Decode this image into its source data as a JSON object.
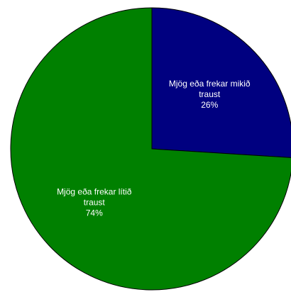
{
  "chart_data": {
    "type": "pie",
    "slices": [
      {
        "label_lines": [
          "Mjög eða frekar mikið",
          "traust"
        ],
        "pct_label": "26%",
        "value": 26,
        "color": "#000080"
      },
      {
        "label_lines": [
          "Mjög eða frekar lítið",
          "traust"
        ],
        "pct_label": "74%",
        "value": 74,
        "color": "#008000"
      }
    ],
    "start": "top",
    "direction": "clockwise"
  }
}
